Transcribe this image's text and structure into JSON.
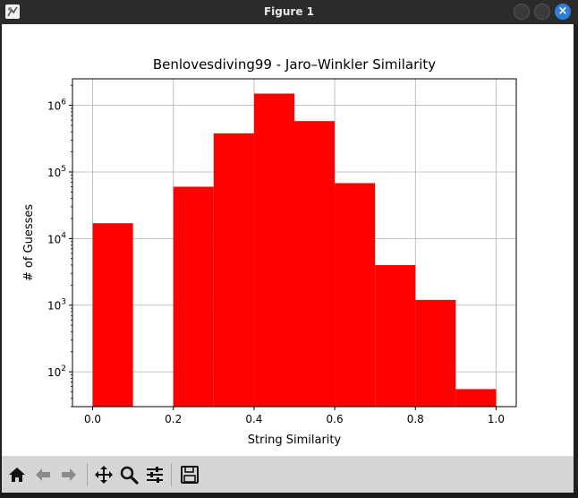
{
  "window": {
    "title": "Figure 1"
  },
  "toolbar": {
    "buttons": [
      {
        "name": "home",
        "icon": "home-icon"
      },
      {
        "name": "back",
        "icon": "arrow-left-icon"
      },
      {
        "name": "forward",
        "icon": "arrow-right-icon"
      },
      {
        "name": "pan",
        "icon": "move-icon"
      },
      {
        "name": "zoom",
        "icon": "zoom-icon"
      },
      {
        "name": "configure",
        "icon": "sliders-icon"
      },
      {
        "name": "save",
        "icon": "save-icon"
      }
    ]
  },
  "chart_data": {
    "type": "bar",
    "title": "Benlovesdiving99 - Jaro–Winkler Similarity",
    "xlabel": "String Similarity",
    "ylabel": "# of Guesses",
    "bar_color": "#ff0000",
    "yscale": "log",
    "grid": true,
    "xlim": [
      -0.05,
      1.05
    ],
    "ylim": [
      30,
      2500000
    ],
    "bin_edges": [
      0.0,
      0.1,
      0.2,
      0.3,
      0.4,
      0.5,
      0.6,
      0.7,
      0.8,
      0.9,
      1.0
    ],
    "values": [
      17000,
      0,
      60000,
      380000,
      1500000,
      580000,
      68000,
      4000,
      1200,
      55
    ],
    "xticks": [
      0.0,
      0.2,
      0.4,
      0.6,
      0.8,
      1.0
    ],
    "xtick_labels": [
      "0.0",
      "0.2",
      "0.4",
      "0.6",
      "0.8",
      "1.0"
    ],
    "yticks": [
      100,
      1000,
      10000,
      100000,
      1000000
    ],
    "ytick_labels": [
      {
        "base": "10",
        "exp": "2"
      },
      {
        "base": "10",
        "exp": "3"
      },
      {
        "base": "10",
        "exp": "4"
      },
      {
        "base": "10",
        "exp": "5"
      },
      {
        "base": "10",
        "exp": "6"
      }
    ]
  }
}
